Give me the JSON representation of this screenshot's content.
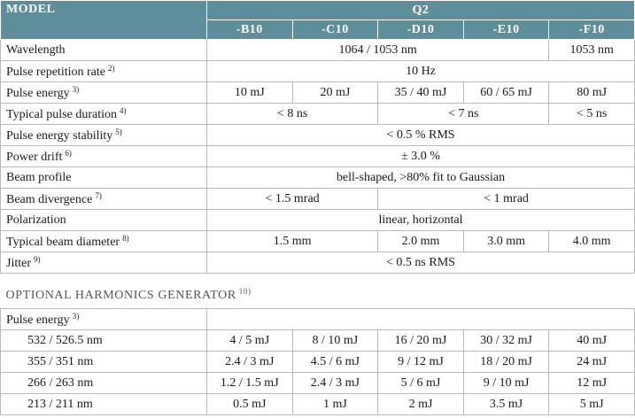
{
  "header": {
    "model": "MODEL",
    "series": "Q2",
    "variants": [
      "-B10",
      "-C10",
      "-D10",
      "-E10",
      "-F10"
    ]
  },
  "rows": [
    {
      "label": "Wavelength",
      "cells": [
        "1064 / 1053 nm",
        "1053 nm"
      ]
    },
    {
      "label": "Pulse repetition rate",
      "note": "2)",
      "cells": [
        "10 Hz"
      ]
    },
    {
      "label": "Pulse energy",
      "note": "3)",
      "cells": [
        "10 mJ",
        "20 mJ",
        "35 / 40 mJ",
        "60 / 65 mJ",
        "80 mJ"
      ]
    },
    {
      "label": "Typical pulse duration",
      "note": "4)",
      "cells": [
        "< 8 ns",
        "< 7 ns",
        "< 5 ns"
      ]
    },
    {
      "label": "Pulse energy stability",
      "note": "5)",
      "cells": [
        "< 0.5 % RMS"
      ]
    },
    {
      "label": "Power drift",
      "note": "6)",
      "cells": [
        "± 3.0 %"
      ]
    },
    {
      "label": "Beam profile",
      "cells": [
        "bell-shaped, >80% fit to Gaussian"
      ]
    },
    {
      "label": "Beam divergence",
      "note": "7)",
      "cells": [
        "< 1.5 mrad",
        "< 1 mrad"
      ]
    },
    {
      "label": "Polarization",
      "cells": [
        "linear, horizontal"
      ]
    },
    {
      "label": "Typical beam diameter",
      "note": "8)",
      "cells": [
        "1.5 mm",
        "2.0 mm",
        "3.0 mm",
        "4.0 mm"
      ]
    },
    {
      "label": "Jitter",
      "note": "9)",
      "cells": [
        "< 0.5 ns RMS"
      ]
    }
  ],
  "harmonics": {
    "title": "OPTIONAL HARMONICS GENERATOR",
    "note": "10)",
    "subheader": {
      "label": "Pulse energy",
      "note": "3)"
    },
    "rows": [
      {
        "label": "532 / 526.5 nm",
        "cells": [
          "4 / 5 mJ",
          "8 / 10 mJ",
          "16 / 20 mJ",
          "30 / 32 mJ",
          "40 mJ"
        ]
      },
      {
        "label": "355 / 351 nm",
        "cells": [
          "2.4 / 3 mJ",
          "4.5 / 6 mJ",
          "9 / 12 mJ",
          "18 / 20 mJ",
          "24 mJ"
        ]
      },
      {
        "label": "266 / 263 nm",
        "cells": [
          "1.2 / 1.5 mJ",
          "2.4 / 3 mJ",
          "5 / 6 mJ",
          "9 / 10 mJ",
          "12 mJ"
        ]
      },
      {
        "label": "213 / 211 nm",
        "cells": [
          "0.5 mJ",
          "1 mJ",
          "2 mJ",
          "3.5 mJ",
          "5 mJ"
        ]
      }
    ]
  }
}
